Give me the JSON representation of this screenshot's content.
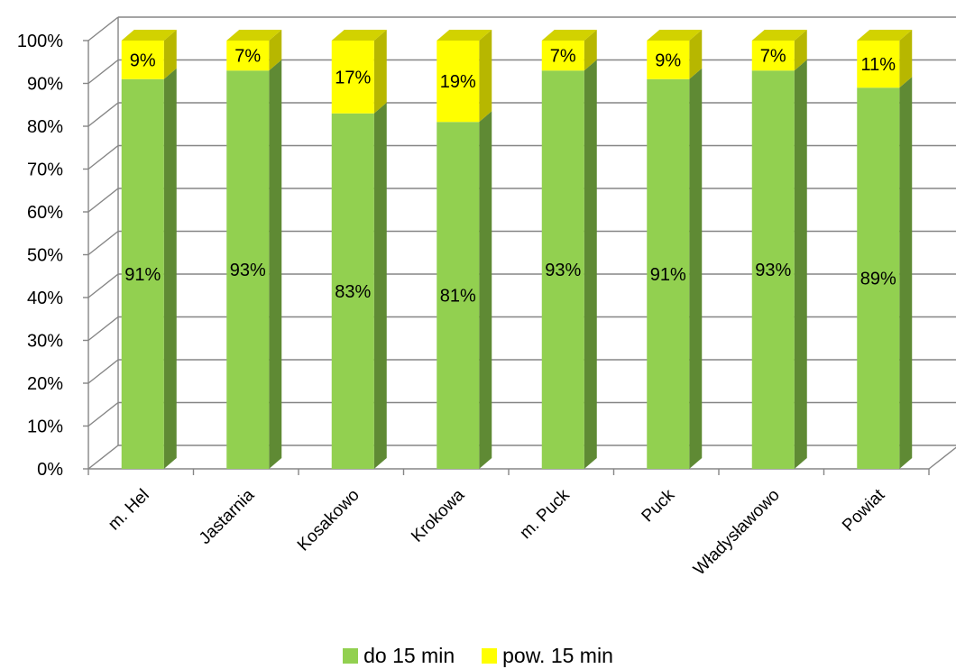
{
  "chart_data": {
    "type": "bar",
    "stacked": true,
    "three_d": true,
    "percent_stacked": true,
    "categories": [
      "m. Hel",
      "Jastarnia",
      "Kosakowo",
      "Krokowa",
      "m. Puck",
      "Puck",
      "Władysławowo",
      "Powiat"
    ],
    "series": [
      {
        "name": "do 15 min",
        "values": [
          91,
          93,
          83,
          81,
          93,
          91,
          93,
          89
        ],
        "labels": [
          "91%",
          "93%",
          "83%",
          "81%",
          "93%",
          "91%",
          "93%",
          "89%"
        ]
      },
      {
        "name": "pow. 15 min",
        "values": [
          9,
          7,
          17,
          19,
          7,
          9,
          7,
          11
        ],
        "labels": [
          "9%",
          "7%",
          "17%",
          "19%",
          "7%",
          "9%",
          "7%",
          "11%"
        ]
      }
    ],
    "y_ticks": [
      "0%",
      "10%",
      "20%",
      "30%",
      "40%",
      "50%",
      "60%",
      "70%",
      "80%",
      "90%",
      "100%"
    ],
    "ylim": [
      0,
      100
    ],
    "grid": true,
    "legend_position": "bottom",
    "title": "",
    "xlabel": "",
    "ylabel": ""
  },
  "colors": {
    "green_front": "#92d050",
    "green_side": "#5f8a34",
    "green_top": "#7fb444",
    "yellow_front": "#ffff00",
    "yellow_side": "#b7b700",
    "yellow_top": "#d2d200",
    "grid": "#868686"
  }
}
